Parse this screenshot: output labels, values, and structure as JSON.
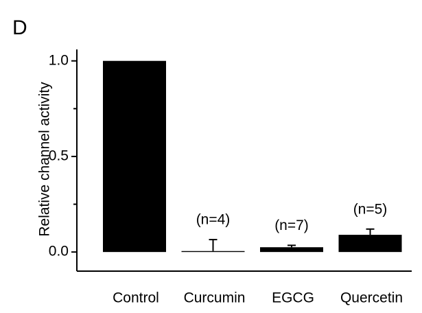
{
  "chart_data": {
    "type": "bar",
    "panel_label": "D",
    "y_label": "Relative channel activity",
    "categories": [
      "Control",
      "Curcumin",
      "EGCG",
      "Quercetin"
    ],
    "values": [
      1.0,
      0.005,
      0.025,
      0.09
    ],
    "errors": [
      null,
      0.06,
      0.01,
      0.03
    ],
    "annotations": [
      null,
      "(n=4)",
      "(n=7)",
      "(n=5)"
    ],
    "color": "#000000",
    "ylim": [
      -0.1,
      1.06
    ],
    "yticks": [
      {
        "value": 0,
        "label": "0.0"
      },
      0.5,
      {
        "value": 1,
        "label": "1.0"
      }
    ],
    "minor_yticks": [
      0.25,
      0.75
    ]
  }
}
